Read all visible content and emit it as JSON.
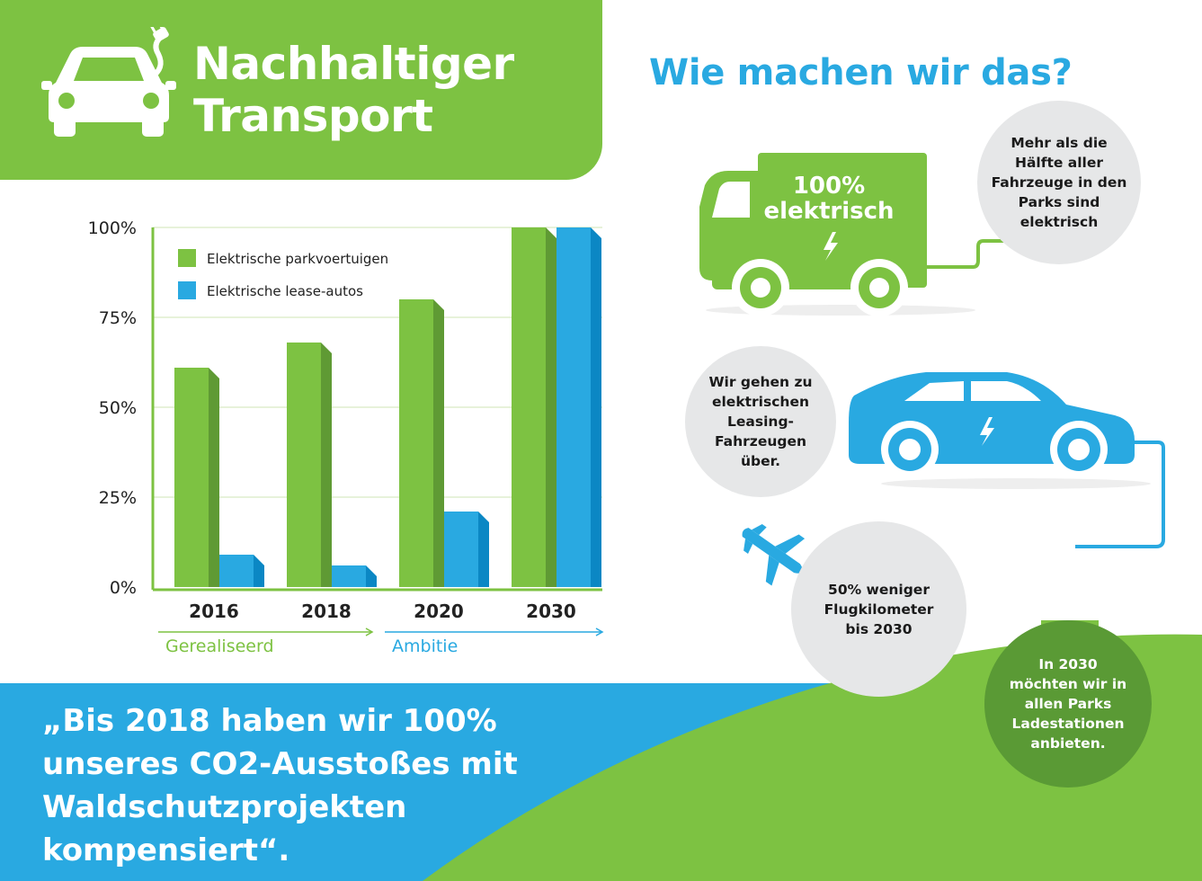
{
  "header": {
    "title": "Nachhaltiger\nTransport"
  },
  "right": {
    "title": "Wie machen wir das?",
    "truck_label": "100%\nelektrisch",
    "truck_bubble": "Mehr als die Hälfte aller Fahrzeuge in den Parks sind elektrisch",
    "car_bubble": "Wir gehen zu elektrischen Leasing-Fahrzeugen über.",
    "flight_bubble": "50% weniger Flugkilometer bis 2030",
    "charge_bubble": "In 2030 möchten wir in allen Parks Ladestationen anbieten."
  },
  "quote": "„Bis 2018 haben wir 100% unseres CO2-Ausstoßes mit Waldschutzprojekten kompensiert“.",
  "colors": {
    "green": "#7dc242",
    "green_dark": "#5f9a34",
    "blue": "#29a9e1",
    "blue_dark": "#0b87c4",
    "circle_gray": "#e6e7e8"
  },
  "chart_data": {
    "type": "bar",
    "categories": [
      "2016",
      "2018",
      "2020",
      "2030"
    ],
    "series": [
      {
        "name": "Elektrische parkvoertuigen",
        "values": [
          61,
          68,
          80,
          100
        ]
      },
      {
        "name": "Elektrische lease-autos",
        "values": [
          9,
          6,
          21,
          100
        ]
      }
    ],
    "ylim": [
      0,
      100
    ],
    "yticks": [
      "0%",
      "25%",
      "50%",
      "75%",
      "100%"
    ],
    "grid": true,
    "legend": "top-left",
    "periods": [
      {
        "label": "Gerealiseerd"
      },
      {
        "label": "Ambitie"
      }
    ]
  }
}
